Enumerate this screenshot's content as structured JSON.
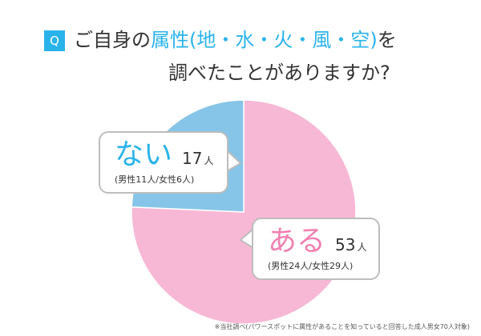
{
  "question": {
    "badge": "Q",
    "line1_prefix": "ご自身の",
    "line1_highlight": "属性(地・水・火・風・空)",
    "line1_suffix": "を",
    "line2": "調べたことがありますか?"
  },
  "chart_data": {
    "type": "pie",
    "title": "ご自身の属性(地・水・火・風・空)を調べたことがありますか?",
    "slices": [
      {
        "label": "ある",
        "value": 53,
        "unit": "人",
        "detail": "(男性24人/女性29人)",
        "color": "#f7b8d5"
      },
      {
        "label": "ない",
        "value": 17,
        "unit": "人",
        "detail": "(男性11人/女性6人)",
        "color": "#86c5e8"
      }
    ],
    "total": 70
  },
  "colors": {
    "accent": "#29b3ea",
    "aru_text": "#f080b0",
    "nai_text": "#29b3ea",
    "callout_border": "#bdbdbd"
  },
  "footnote": "※当社調べ(パワースポットに属性があることを知っていると回答した成人男女70人対象)"
}
